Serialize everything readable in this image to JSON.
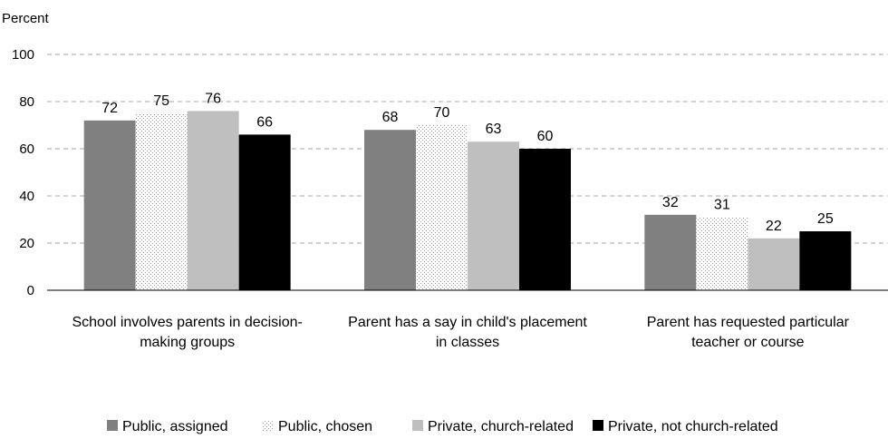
{
  "chart_data": {
    "type": "bar",
    "ylabel": "Percent",
    "xlabel": "",
    "ylim": [
      0,
      100
    ],
    "yticks": [
      0,
      20,
      40,
      60,
      80,
      100
    ],
    "grid": true,
    "legend_position": "bottom",
    "categories": [
      [
        "School involves parents in decision-",
        "making groups"
      ],
      [
        "Parent has a say in child's placement",
        "in classes"
      ],
      [
        "Parent has requested particular",
        "teacher or course"
      ]
    ],
    "series": [
      {
        "name": "Public, assigned",
        "values": [
          72,
          68,
          32
        ],
        "color": "#808080",
        "pattern": "solid"
      },
      {
        "name": "Public, chosen",
        "values": [
          75,
          70,
          31
        ],
        "color": "#bfbfbf",
        "pattern": "dotted"
      },
      {
        "name": "Private, church-related",
        "values": [
          76,
          63,
          22
        ],
        "color": "#bfbfbf",
        "pattern": "solid"
      },
      {
        "name": "Private, not church-related",
        "values": [
          66,
          60,
          25
        ],
        "color": "#000000",
        "pattern": "solid"
      }
    ]
  }
}
